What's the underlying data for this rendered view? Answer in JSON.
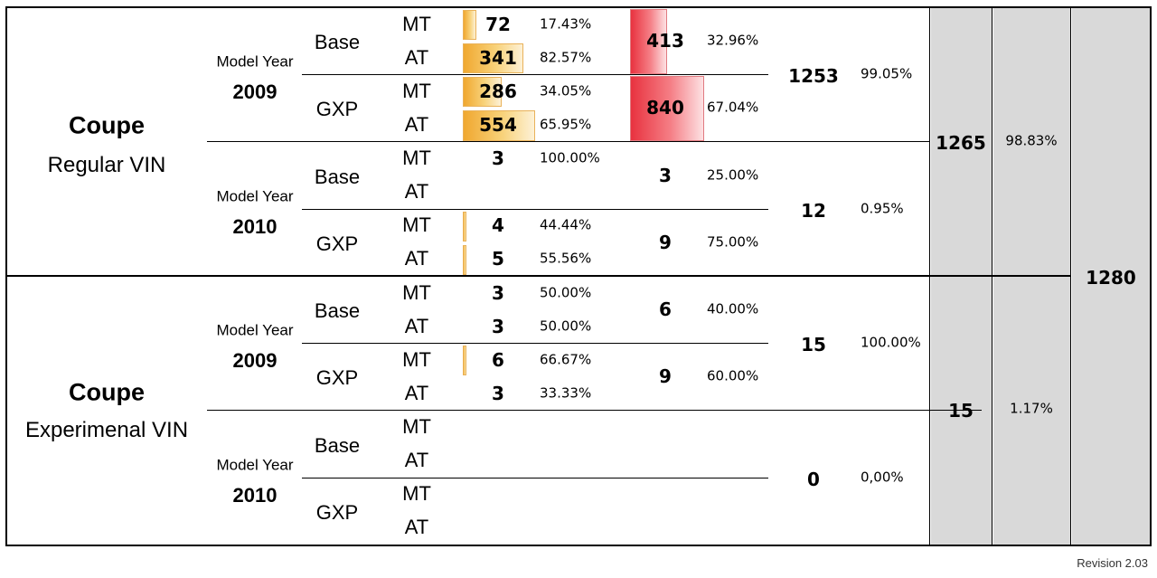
{
  "sections": [
    {
      "title": "Coupe",
      "subtitle": "Regular VIN",
      "years": [
        {
          "label": "Model Year",
          "year": "2009",
          "trims": [
            {
              "name": "Base",
              "trim_total": "413",
              "trim_pct": "32.96%",
              "trim_bar": 0.49,
              "rows": [
                {
                  "tx": "MT",
                  "count": "72",
                  "pct": "17.43%",
                  "bar": 0.17
                },
                {
                  "tx": "AT",
                  "count": "341",
                  "pct": "82.57%",
                  "bar": 0.83
                }
              ]
            },
            {
              "name": "GXP",
              "trim_total": "840",
              "trim_pct": "67.04%",
              "trim_bar": 1.0,
              "rows": [
                {
                  "tx": "MT",
                  "count": "286",
                  "pct": "34.05%",
                  "bar": 0.52
                },
                {
                  "tx": "AT",
                  "count": "554",
                  "pct": "65.95%",
                  "bar": 1.0
                }
              ]
            }
          ],
          "year_total": "1253",
          "year_pct": "99.05%"
        },
        {
          "label": "Model Year",
          "year": "2010",
          "trims": [
            {
              "name": "Base",
              "trim_total": "3",
              "trim_pct": "25.00%",
              "trim_bar": 0,
              "rows": [
                {
                  "tx": "MT",
                  "count": "3",
                  "pct": "100.00%",
                  "bar": 0
                },
                {
                  "tx": "AT",
                  "count": "",
                  "pct": "",
                  "bar": 0
                }
              ]
            },
            {
              "name": "GXP",
              "trim_total": "9",
              "trim_pct": "75.00%",
              "trim_bar": 0,
              "rows": [
                {
                  "tx": "MT",
                  "count": "4",
                  "pct": "44.44%",
                  "bar": 0.01
                },
                {
                  "tx": "AT",
                  "count": "5",
                  "pct": "55.56%",
                  "bar": 0.01
                }
              ]
            }
          ],
          "year_total": "12",
          "year_pct": "0.95%"
        }
      ],
      "section_total": "1265",
      "section_pct": "98.83%"
    },
    {
      "title": "Coupe",
      "subtitle": "Experimenal VIN",
      "years": [
        {
          "label": "Model Year",
          "year": "2009",
          "trims": [
            {
              "name": "Base",
              "trim_total": "6",
              "trim_pct": "40.00%",
              "trim_bar": 0,
              "rows": [
                {
                  "tx": "MT",
                  "count": "3",
                  "pct": "50.00%",
                  "bar": 0
                },
                {
                  "tx": "AT",
                  "count": "3",
                  "pct": "50.00%",
                  "bar": 0
                }
              ]
            },
            {
              "name": "GXP",
              "trim_total": "9",
              "trim_pct": "60.00%",
              "trim_bar": 0,
              "rows": [
                {
                  "tx": "MT",
                  "count": "6",
                  "pct": "66.67%",
                  "bar": 0.01
                },
                {
                  "tx": "AT",
                  "count": "3",
                  "pct": "33.33%",
                  "bar": 0
                }
              ]
            }
          ],
          "year_total": "15",
          "year_pct": "100.00%"
        },
        {
          "label": "Model Year",
          "year": "2010",
          "trims": [
            {
              "name": "Base",
              "trim_total": "",
              "trim_pct": "",
              "trim_bar": 0,
              "rows": [
                {
                  "tx": "MT",
                  "count": "",
                  "pct": "",
                  "bar": 0
                },
                {
                  "tx": "AT",
                  "count": "",
                  "pct": "",
                  "bar": 0
                }
              ]
            },
            {
              "name": "GXP",
              "trim_total": "",
              "trim_pct": "",
              "trim_bar": 0,
              "rows": [
                {
                  "tx": "MT",
                  "count": "",
                  "pct": "",
                  "bar": 0
                },
                {
                  "tx": "AT",
                  "count": "",
                  "pct": "",
                  "bar": 0
                }
              ]
            }
          ],
          "year_total": "0",
          "year_pct": "0,00%"
        }
      ],
      "section_total": "15",
      "section_pct": "1.17%"
    }
  ],
  "grand_total": "1280",
  "revision": "Revision 2.03",
  "colors": {
    "row_bar": "#f0a830",
    "trim_bar": "#e8323f",
    "total_fill": "#d9d9d9"
  }
}
